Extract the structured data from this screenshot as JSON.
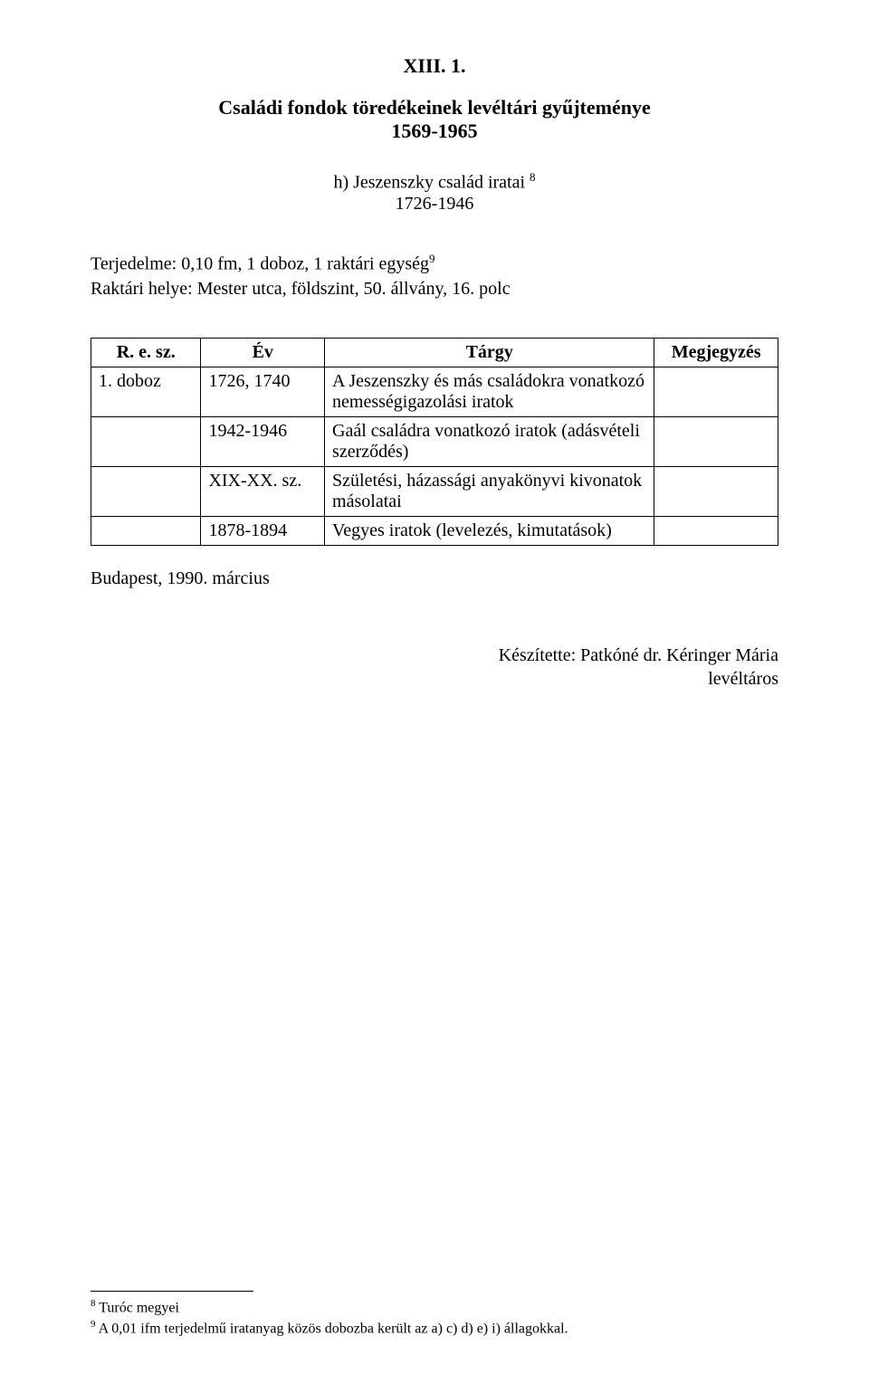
{
  "header": {
    "code": "XIII. 1.",
    "title_line1": "Családi fondok töredékeinek levéltári gyűjteménye",
    "title_years": "1569-1965",
    "subtitle": "h) Jeszenszky család iratai",
    "subtitle_sup": "8",
    "subtitle_years": "1726-1946"
  },
  "meta": {
    "extent_label": "Terjedelme: 0,10 fm, 1 doboz, 1 raktári egység",
    "extent_sup": "9",
    "location": "Raktári helye: Mester utca, földszint, 50. állvány, 16. polc"
  },
  "table": {
    "headers": {
      "re": "R. e. sz.",
      "ev": "Év",
      "targy": "Tárgy",
      "meg": "Megjegyzés"
    },
    "rows": [
      {
        "re": "1. doboz",
        "ev": "1726, 1740",
        "targy": "A Jeszenszky és más családokra vonatkozó nemességigazolási iratok",
        "meg": ""
      },
      {
        "re": "",
        "ev": "1942-1946",
        "targy": "Gaál családra vonatkozó iratok (adásvételi szerződés)",
        "meg": ""
      },
      {
        "re": "",
        "ev": "XIX-XX. sz.",
        "targy": "Születési, házassági anyakönyvi kivonatok másolatai",
        "meg": ""
      },
      {
        "re": "",
        "ev": "1878-1894",
        "targy": "Vegyes iratok (levelezés, kimutatások)",
        "meg": ""
      }
    ]
  },
  "post_table": "Budapest, 1990. március",
  "prepared_by": {
    "line1": "Készítette: Patkóné dr. Kéringer Mária",
    "line2": "levéltáros"
  },
  "footnotes": [
    {
      "num": "8",
      "text": "Turóc megyei"
    },
    {
      "num": "9",
      "text": "A 0,01 ifm terjedelmű iratanyag közös dobozba került az a) c) d) e) i) állagokkal."
    }
  ]
}
